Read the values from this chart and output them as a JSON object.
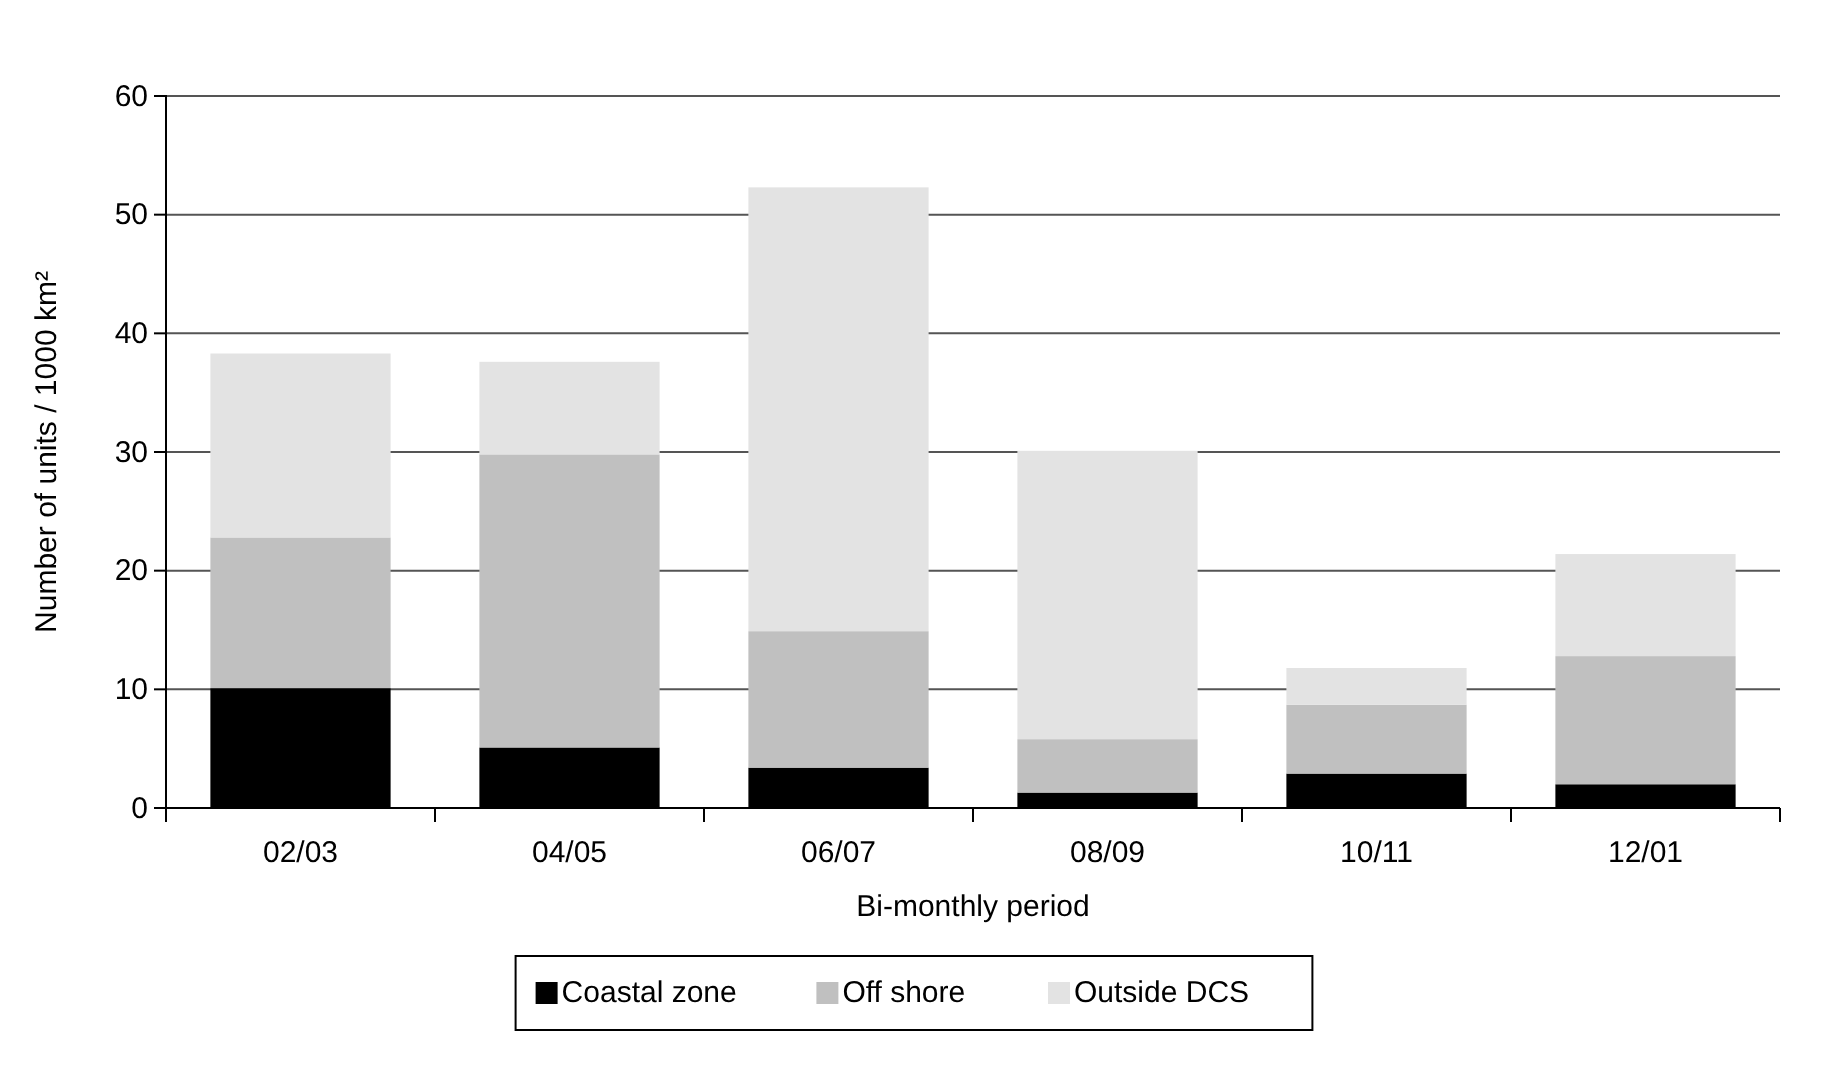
{
  "chart_data": {
    "type": "bar",
    "stacked": true,
    "xlabel": "Bi-monthly period",
    "ylabel": "Number of units / 1000 km²",
    "categories": [
      "02/03",
      "04/05",
      "06/07",
      "08/09",
      "10/11",
      "12/01"
    ],
    "series": [
      {
        "name": "Coastal zone",
        "color": "#000000",
        "values": [
          10.1,
          5.1,
          3.4,
          1.3,
          2.9,
          2.0
        ]
      },
      {
        "name": "Off shore",
        "color": "#c0c0c0",
        "values": [
          12.7,
          24.7,
          11.5,
          4.5,
          5.8,
          10.8
        ]
      },
      {
        "name": "Outside DCS",
        "color": "#e3e3e3",
        "values": [
          15.5,
          7.8,
          37.4,
          24.3,
          3.1,
          8.6
        ]
      }
    ],
    "ylim": [
      0,
      60
    ],
    "yticks": [
      0,
      10,
      20,
      30,
      40,
      50,
      60
    ],
    "grid": "y",
    "legend": "bottom"
  }
}
